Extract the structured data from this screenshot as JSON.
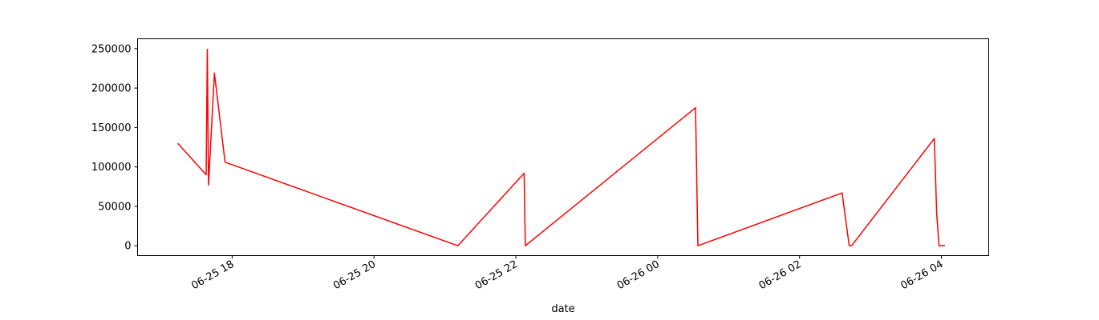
{
  "chart_data": {
    "type": "line",
    "title": "",
    "xlabel": "date",
    "ylabel": "",
    "grid": false,
    "legend": "none",
    "x_ticks": [
      "2025-06-25T18:00",
      "2025-06-25T20:00",
      "2025-06-25T22:00",
      "2025-06-26T00:00",
      "2025-06-26T02:00",
      "2025-06-26T04:00"
    ],
    "x_tick_labels": [
      "06-25 18",
      "06-25 20",
      "06-25 22",
      "06-26 00",
      "06-26 02",
      "06-26 04"
    ],
    "y_ticks": [
      0,
      50000,
      100000,
      150000,
      200000,
      250000
    ],
    "y_tick_labels": [
      "0",
      "50000",
      "100000",
      "150000",
      "200000",
      "250000"
    ],
    "xlim": [
      "2025-06-25T16:40",
      "2025-06-26T04:40"
    ],
    "ylim": [
      -12500,
      262500
    ],
    "series": [
      {
        "color": "#ff0000",
        "points": [
          [
            "2025-06-25T17:14",
            130000
          ],
          [
            "2025-06-25T17:38",
            90000
          ],
          [
            "2025-06-25T17:39",
            249000
          ],
          [
            "2025-06-25T17:40",
            77000
          ],
          [
            "2025-06-25T17:45",
            219000
          ],
          [
            "2025-06-25T17:54",
            106000
          ],
          [
            "2025-06-25T21:11",
            0
          ],
          [
            "2025-06-25T22:07",
            92000
          ],
          [
            "2025-06-25T22:08",
            0
          ],
          [
            "2025-06-26T00:32",
            175000
          ],
          [
            "2025-06-26T00:34",
            0
          ],
          [
            "2025-06-26T02:36",
            67000
          ],
          [
            "2025-06-26T02:42",
            0
          ],
          [
            "2025-06-26T02:44",
            0
          ],
          [
            "2025-06-26T03:54",
            136000
          ],
          [
            "2025-06-26T03:56",
            41000
          ],
          [
            "2025-06-26T03:58",
            0
          ],
          [
            "2025-06-26T04:03",
            0
          ]
        ]
      }
    ]
  }
}
